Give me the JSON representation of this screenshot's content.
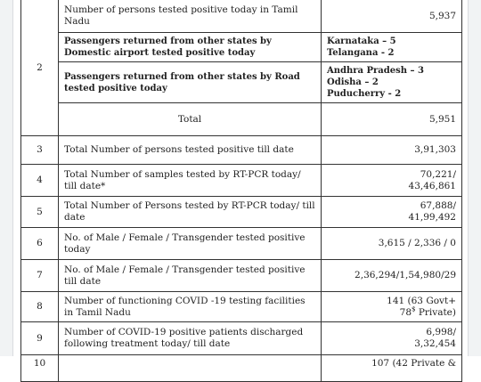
{
  "report": {
    "rows": [
      {
        "sno": "2",
        "a": {
          "desc": "Number of persons tested positive today in Tamil Nadu",
          "value": "5,937"
        },
        "b": {
          "desc": "Passengers returned from other states by Domestic airport tested positive today",
          "value_lines": [
            "Karnataka – 5",
            "Telangana - 2"
          ]
        },
        "c": {
          "desc": "Passengers returned from other states by Road tested positive today",
          "value_lines": [
            "Andhra Pradesh – 3",
            "Odisha – 2",
            "Puducherry - 2"
          ]
        },
        "total": {
          "desc": "Total",
          "value": "5,951"
        }
      },
      {
        "sno": "3",
        "desc": "Total Number of persons tested positive till date",
        "value": "3,91,303"
      },
      {
        "sno": "4",
        "desc": "Total Number of samples tested by  RT-PCR today/ till date*",
        "value_lines": [
          "70,221/",
          "43,46,861"
        ]
      },
      {
        "sno": "5",
        "desc": "Total Number of Persons tested by  RT-PCR today/ till date",
        "value_lines": [
          "67,888/",
          "41,99,492"
        ]
      },
      {
        "sno": "6",
        "desc": "No. of Male / Female / Transgender tested positive today",
        "value": "3,615 / 2,336 / 0"
      },
      {
        "sno": "7",
        "desc": "No. of Male / Female / Transgender tested positive till date",
        "value": "2,36,294/1,54,980/29"
      },
      {
        "sno": "8",
        "desc": "Number of functioning COVID -19 testing facilities in Tamil Nadu",
        "value_lines": [
          "141 (63 Govt+",
          "78",
          "Private)"
        ],
        "value_sup": "$"
      },
      {
        "sno": "9",
        "desc": "Number of COVID-19 positive patients discharged following treatment today/ till date",
        "value_lines": [
          "6,998/",
          "3,32,454"
        ]
      },
      {
        "sno": "10",
        "desc": "",
        "value": "107 (42 Private &"
      }
    ]
  }
}
